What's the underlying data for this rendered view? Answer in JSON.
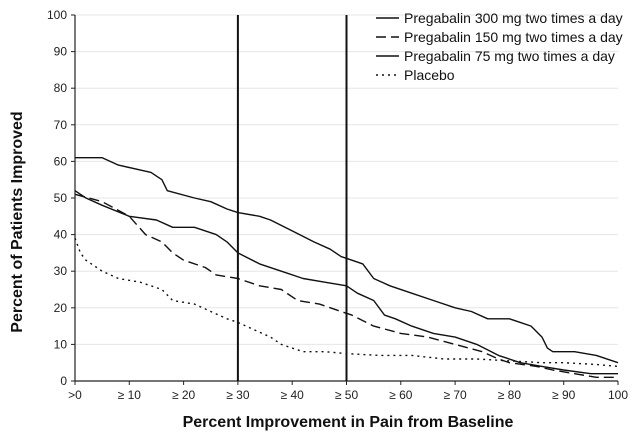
{
  "chart_data": {
    "type": "line",
    "title": "",
    "xlabel": "Percent Improvement in Pain from Baseline",
    "ylabel": "Percent of Patients Improved",
    "xlim": [
      0,
      100
    ],
    "ylim": [
      0,
      100
    ],
    "x_tick_labels": [
      ">0",
      "≥ 10",
      "≥ 20",
      "≥ 30",
      "≥ 40",
      "≥ 50",
      "≥ 60",
      "≥ 70",
      "≥ 80",
      "≥ 90",
      "100"
    ],
    "x_tick_values": [
      0,
      10,
      20,
      30,
      40,
      50,
      60,
      70,
      80,
      90,
      100
    ],
    "y_ticks": [
      0,
      10,
      20,
      30,
      40,
      50,
      60,
      70,
      80,
      90,
      100
    ],
    "reference_lines_x": [
      30,
      50
    ],
    "legend_position": "top-right",
    "series": [
      {
        "name": "Pregabalin 300 mg two times a day",
        "style": "solid",
        "points": [
          [
            0,
            61
          ],
          [
            5,
            61
          ],
          [
            8,
            59
          ],
          [
            14,
            57
          ],
          [
            16,
            55
          ],
          [
            17,
            52
          ],
          [
            22,
            50
          ],
          [
            25,
            49
          ],
          [
            28,
            47
          ],
          [
            30,
            46
          ],
          [
            34,
            45
          ],
          [
            36,
            44
          ],
          [
            40,
            41
          ],
          [
            44,
            38
          ],
          [
            47,
            36
          ],
          [
            49,
            34
          ],
          [
            51,
            33
          ],
          [
            53,
            32
          ],
          [
            55,
            28
          ],
          [
            58,
            26
          ],
          [
            62,
            24
          ],
          [
            66,
            22
          ],
          [
            70,
            20
          ],
          [
            73,
            19
          ],
          [
            76,
            17
          ],
          [
            80,
            17
          ],
          [
            82,
            16
          ],
          [
            84,
            15
          ],
          [
            86,
            12
          ],
          [
            87,
            9
          ],
          [
            88,
            8
          ],
          [
            92,
            8
          ],
          [
            96,
            7
          ],
          [
            100,
            5
          ]
        ]
      },
      {
        "name": "Pregabalin 150 mg two times a day",
        "style": "dashed",
        "points": [
          [
            0,
            51
          ],
          [
            5,
            49
          ],
          [
            10,
            45
          ],
          [
            13,
            40
          ],
          [
            16,
            38
          ],
          [
            18,
            35
          ],
          [
            20,
            33
          ],
          [
            24,
            31
          ],
          [
            26,
            29
          ],
          [
            30,
            28
          ],
          [
            34,
            26
          ],
          [
            38,
            25
          ],
          [
            41,
            22
          ],
          [
            45,
            21
          ],
          [
            49,
            19
          ],
          [
            51,
            18
          ],
          [
            55,
            15
          ],
          [
            60,
            13
          ],
          [
            65,
            12
          ],
          [
            70,
            10
          ],
          [
            75,
            8
          ],
          [
            78,
            6
          ],
          [
            80,
            5
          ],
          [
            85,
            4
          ],
          [
            88,
            3
          ],
          [
            92,
            2
          ],
          [
            96,
            1
          ],
          [
            100,
            1
          ]
        ]
      },
      {
        "name": "Pregabalin 75 mg two times a day",
        "style": "solid",
        "points": [
          [
            0,
            52
          ],
          [
            2,
            50
          ],
          [
            5,
            48
          ],
          [
            10,
            45
          ],
          [
            15,
            44
          ],
          [
            18,
            42
          ],
          [
            22,
            42
          ],
          [
            26,
            40
          ],
          [
            28,
            38
          ],
          [
            30,
            35
          ],
          [
            34,
            32
          ],
          [
            38,
            30
          ],
          [
            42,
            28
          ],
          [
            46,
            27
          ],
          [
            50,
            26
          ],
          [
            52,
            24
          ],
          [
            55,
            22
          ],
          [
            57,
            18
          ],
          [
            59,
            17
          ],
          [
            62,
            15
          ],
          [
            66,
            13
          ],
          [
            70,
            12
          ],
          [
            74,
            10
          ],
          [
            78,
            7
          ],
          [
            82,
            5
          ],
          [
            86,
            4
          ],
          [
            90,
            3
          ],
          [
            95,
            2
          ],
          [
            100,
            2
          ]
        ]
      },
      {
        "name": "Placebo",
        "style": "dotted",
        "points": [
          [
            0,
            39
          ],
          [
            1,
            35
          ],
          [
            2,
            33
          ],
          [
            5,
            30
          ],
          [
            8,
            28
          ],
          [
            12,
            27
          ],
          [
            16,
            25
          ],
          [
            18,
            22
          ],
          [
            22,
            21
          ],
          [
            25,
            19
          ],
          [
            28,
            17
          ],
          [
            30,
            16
          ],
          [
            33,
            14
          ],
          [
            36,
            12
          ],
          [
            38,
            10
          ],
          [
            40,
            9
          ],
          [
            42,
            8
          ],
          [
            46,
            8
          ],
          [
            50,
            7.5
          ],
          [
            56,
            7
          ],
          [
            62,
            7
          ],
          [
            68,
            6
          ],
          [
            74,
            6
          ],
          [
            80,
            5.5
          ],
          [
            86,
            5
          ],
          [
            90,
            5
          ],
          [
            96,
            4.5
          ],
          [
            100,
            4
          ]
        ]
      }
    ]
  }
}
